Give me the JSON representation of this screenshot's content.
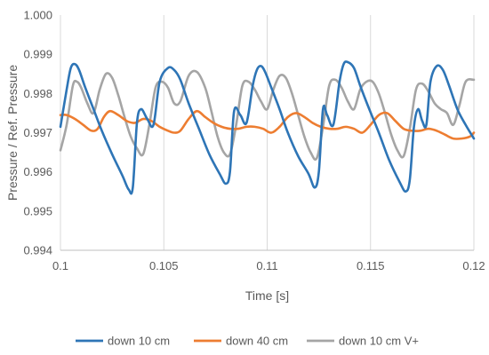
{
  "chart_data": {
    "type": "line",
    "xlabel": "Time [s]",
    "ylabel": "Pressure / Ref. Pressure",
    "xlim": [
      0.1,
      0.12
    ],
    "ylim": [
      0.994,
      1.0
    ],
    "x_ticks": [
      "0.1",
      "0.105",
      "0.11",
      "0.115",
      "0.12"
    ],
    "y_ticks": [
      "0.994",
      "0.995",
      "0.996",
      "0.997",
      "0.998",
      "0.999",
      "1.000"
    ],
    "grid": "vertical",
    "legend_position": "bottom",
    "series": [
      {
        "name": "down 10 cm",
        "color": "#2e75b6",
        "x": [
          0.1,
          0.1003,
          0.1005,
          0.1007,
          0.1009,
          0.1012,
          0.1016,
          0.102,
          0.1025,
          0.103,
          0.1033,
          0.1035,
          0.1037,
          0.1039,
          0.1042,
          0.1045,
          0.1048,
          0.1052,
          0.1055,
          0.1058,
          0.1062,
          0.1067,
          0.1072,
          0.1077,
          0.108,
          0.1082,
          0.1084,
          0.1087,
          0.109,
          0.1093,
          0.1095,
          0.1097,
          0.1099,
          0.1102,
          0.1106,
          0.111,
          0.1115,
          0.112,
          0.1123,
          0.1125,
          0.1127,
          0.1129,
          0.1132,
          0.1135,
          0.1137,
          0.1139,
          0.1142,
          0.1145,
          0.1149,
          0.1154,
          0.1159,
          0.1164,
          0.1167,
          0.1169,
          0.1171,
          0.1173,
          0.1175,
          0.1177,
          0.1179,
          0.1182,
          0.1185,
          0.1188,
          0.1192,
          0.1196,
          0.12
        ],
        "y": [
          0.99715,
          0.9981,
          0.99865,
          0.99875,
          0.9986,
          0.99815,
          0.9976,
          0.99705,
          0.99645,
          0.9959,
          0.99555,
          0.9956,
          0.99725,
          0.9976,
          0.99735,
          0.9972,
          0.9983,
          0.99865,
          0.9986,
          0.99835,
          0.99775,
          0.9971,
          0.99645,
          0.99595,
          0.9957,
          0.996,
          0.99755,
          0.99745,
          0.99725,
          0.9982,
          0.9986,
          0.9987,
          0.99855,
          0.99815,
          0.9976,
          0.997,
          0.9964,
          0.99595,
          0.9956,
          0.996,
          0.9976,
          0.99745,
          0.9972,
          0.9983,
          0.99875,
          0.9988,
          0.99865,
          0.9982,
          0.99765,
          0.997,
          0.9963,
          0.99575,
          0.9955,
          0.9958,
          0.99715,
          0.9976,
          0.9973,
          0.9972,
          0.9983,
          0.9987,
          0.9986,
          0.9982,
          0.9976,
          0.9972,
          0.99685
        ]
      },
      {
        "name": "down 40 cm",
        "color": "#ed7d31",
        "x": [
          0.1,
          0.1003,
          0.1007,
          0.1011,
          0.1015,
          0.1018,
          0.1021,
          0.1024,
          0.1028,
          0.1032,
          0.1036,
          0.104,
          0.1044,
          0.1048,
          0.1052,
          0.1055,
          0.1058,
          0.1062,
          0.1066,
          0.107,
          0.1074,
          0.1078,
          0.1082,
          0.1086,
          0.109,
          0.1094,
          0.1098,
          0.1102,
          0.1106,
          0.111,
          0.1114,
          0.1118,
          0.1122,
          0.1126,
          0.113,
          0.1134,
          0.1138,
          0.1142,
          0.1146,
          0.115,
          0.1154,
          0.1158,
          0.1162,
          0.1166,
          0.117,
          0.1174,
          0.1178,
          0.1182,
          0.1186,
          0.119,
          0.1194,
          0.1198,
          0.12
        ],
        "y": [
          0.99745,
          0.99745,
          0.99735,
          0.9972,
          0.99705,
          0.9971,
          0.9974,
          0.99755,
          0.99745,
          0.9973,
          0.99725,
          0.99735,
          0.9973,
          0.99715,
          0.99705,
          0.997,
          0.99705,
          0.99735,
          0.99755,
          0.9974,
          0.99725,
          0.99715,
          0.9971,
          0.9971,
          0.99715,
          0.99715,
          0.9971,
          0.997,
          0.99715,
          0.9974,
          0.9975,
          0.9974,
          0.99725,
          0.99715,
          0.9971,
          0.9971,
          0.99715,
          0.9971,
          0.997,
          0.9972,
          0.99745,
          0.9975,
          0.9973,
          0.9971,
          0.99705,
          0.99705,
          0.9971,
          0.99705,
          0.99695,
          0.99685,
          0.99685,
          0.9969,
          0.997
        ]
      },
      {
        "name": "down 10 cm V+",
        "color": "#a5a5a5",
        "x": [
          0.1,
          0.1003,
          0.1006,
          0.1008,
          0.101,
          0.1013,
          0.1016,
          0.1019,
          0.1022,
          0.1025,
          0.1028,
          0.1031,
          0.1034,
          0.1037,
          0.104,
          0.1043,
          0.1046,
          0.1049,
          0.1052,
          0.1055,
          0.1058,
          0.1062,
          0.1066,
          0.107,
          0.1073,
          0.1076,
          0.1079,
          0.1082,
          0.1085,
          0.1088,
          0.1091,
          0.1094,
          0.1097,
          0.11,
          0.1103,
          0.1106,
          0.1109,
          0.1112,
          0.1115,
          0.1118,
          0.1121,
          0.1124,
          0.1127,
          0.113,
          0.1133,
          0.1136,
          0.1139,
          0.1142,
          0.1145,
          0.1148,
          0.1151,
          0.1154,
          0.1157,
          0.116,
          0.1163,
          0.1166,
          0.1169,
          0.1172,
          0.1175,
          0.1178,
          0.1181,
          0.1184,
          0.1187,
          0.119,
          0.1193,
          0.1196,
          0.12
        ],
        "y": [
          0.99655,
          0.9972,
          0.9982,
          0.9983,
          0.99815,
          0.99775,
          0.9975,
          0.9981,
          0.9985,
          0.9984,
          0.99795,
          0.9974,
          0.9969,
          0.9966,
          0.99645,
          0.9972,
          0.99815,
          0.9983,
          0.99815,
          0.99775,
          0.9978,
          0.99845,
          0.99855,
          0.99815,
          0.99755,
          0.9969,
          0.9965,
          0.99645,
          0.9972,
          0.9982,
          0.9983,
          0.9981,
          0.9978,
          0.9976,
          0.9981,
          0.99845,
          0.9984,
          0.998,
          0.99745,
          0.9969,
          0.9965,
          0.99635,
          0.99715,
          0.9982,
          0.99835,
          0.99815,
          0.9978,
          0.9976,
          0.9981,
          0.9983,
          0.9983,
          0.998,
          0.9975,
          0.99695,
          0.99655,
          0.9964,
          0.9971,
          0.9981,
          0.99825,
          0.99805,
          0.99775,
          0.9976,
          0.9975,
          0.9972,
          0.9977,
          0.9983,
          0.99835
        ]
      }
    ]
  }
}
